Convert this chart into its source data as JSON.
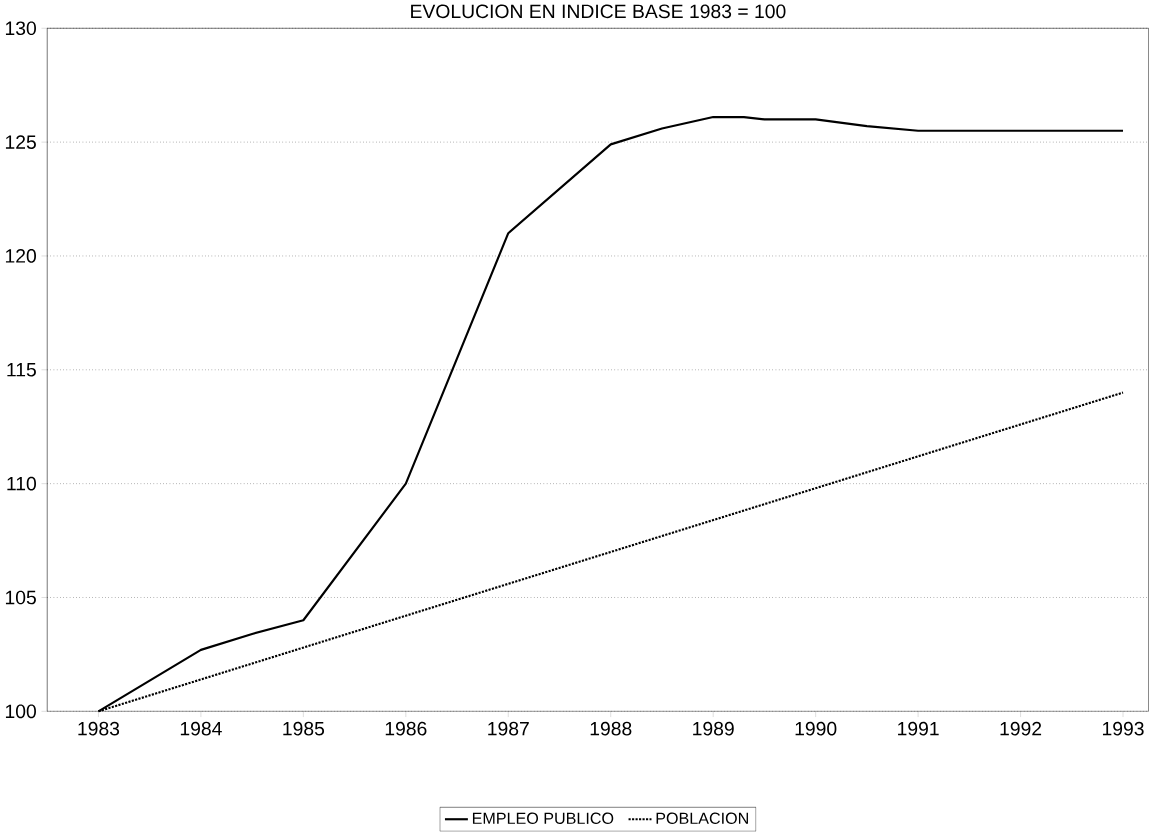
{
  "chart_data": {
    "type": "line",
    "title": "EVOLUCION EN INDICE BASE 1983 = 100",
    "xlim": [
      1982.5,
      1993.25
    ],
    "ylim": [
      100,
      130
    ],
    "xticks": [
      1983,
      1984,
      1985,
      1986,
      1987,
      1988,
      1989,
      1990,
      1991,
      1992,
      1993
    ],
    "yticks": [
      100,
      105,
      110,
      115,
      120,
      125,
      130
    ],
    "grid": "y",
    "legend": "bottom",
    "series": [
      {
        "name": "EMPLEO PUBLICO",
        "color": "#000000",
        "line_style": "solid",
        "x": [
          1983,
          1984,
          1984.5,
          1985,
          1986,
          1987,
          1988,
          1988.5,
          1989,
          1989.3,
          1989.5,
          1990,
          1990.5,
          1991,
          1993
        ],
        "values": [
          100,
          102.7,
          103.4,
          104,
          110,
          121,
          124.9,
          125.6,
          126.1,
          126.1,
          126.0,
          126.0,
          125.7,
          125.5,
          125.5
        ]
      },
      {
        "name": "POBLACION",
        "color": "#000000",
        "line_style": "dotted",
        "x": [
          1983,
          1993
        ],
        "values": [
          100,
          114
        ]
      }
    ]
  }
}
